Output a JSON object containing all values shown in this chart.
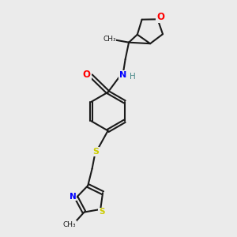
{
  "bg_color": "#ebebeb",
  "bond_color": "#1a1a1a",
  "atom_colors": {
    "O": "#ff0000",
    "N": "#0000ff",
    "S": "#cccc00",
    "H": "#4a8a8a",
    "C": "#1a1a1a"
  }
}
